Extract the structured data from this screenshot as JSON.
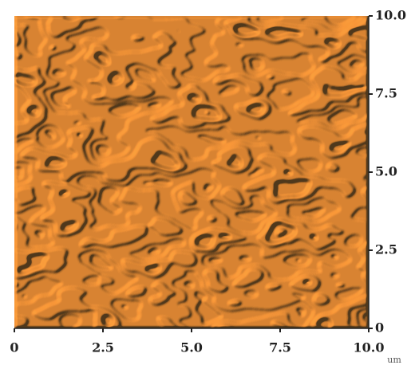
{
  "chart_data": {
    "type": "image",
    "xlabel": "um",
    "xlim": [
      0,
      10
    ],
    "ylim": [
      0,
      10
    ],
    "xticks": [
      0,
      2.5,
      {
        "value": 5,
        "label": "5.0"
      },
      7.5,
      {
        "value": 10,
        "label": "10.0"
      }
    ],
    "yticks": [
      0,
      2.5,
      {
        "value": 5,
        "label": "5.0"
      },
      7.5,
      {
        "value": 10,
        "label": "10.0"
      }
    ]
  }
}
